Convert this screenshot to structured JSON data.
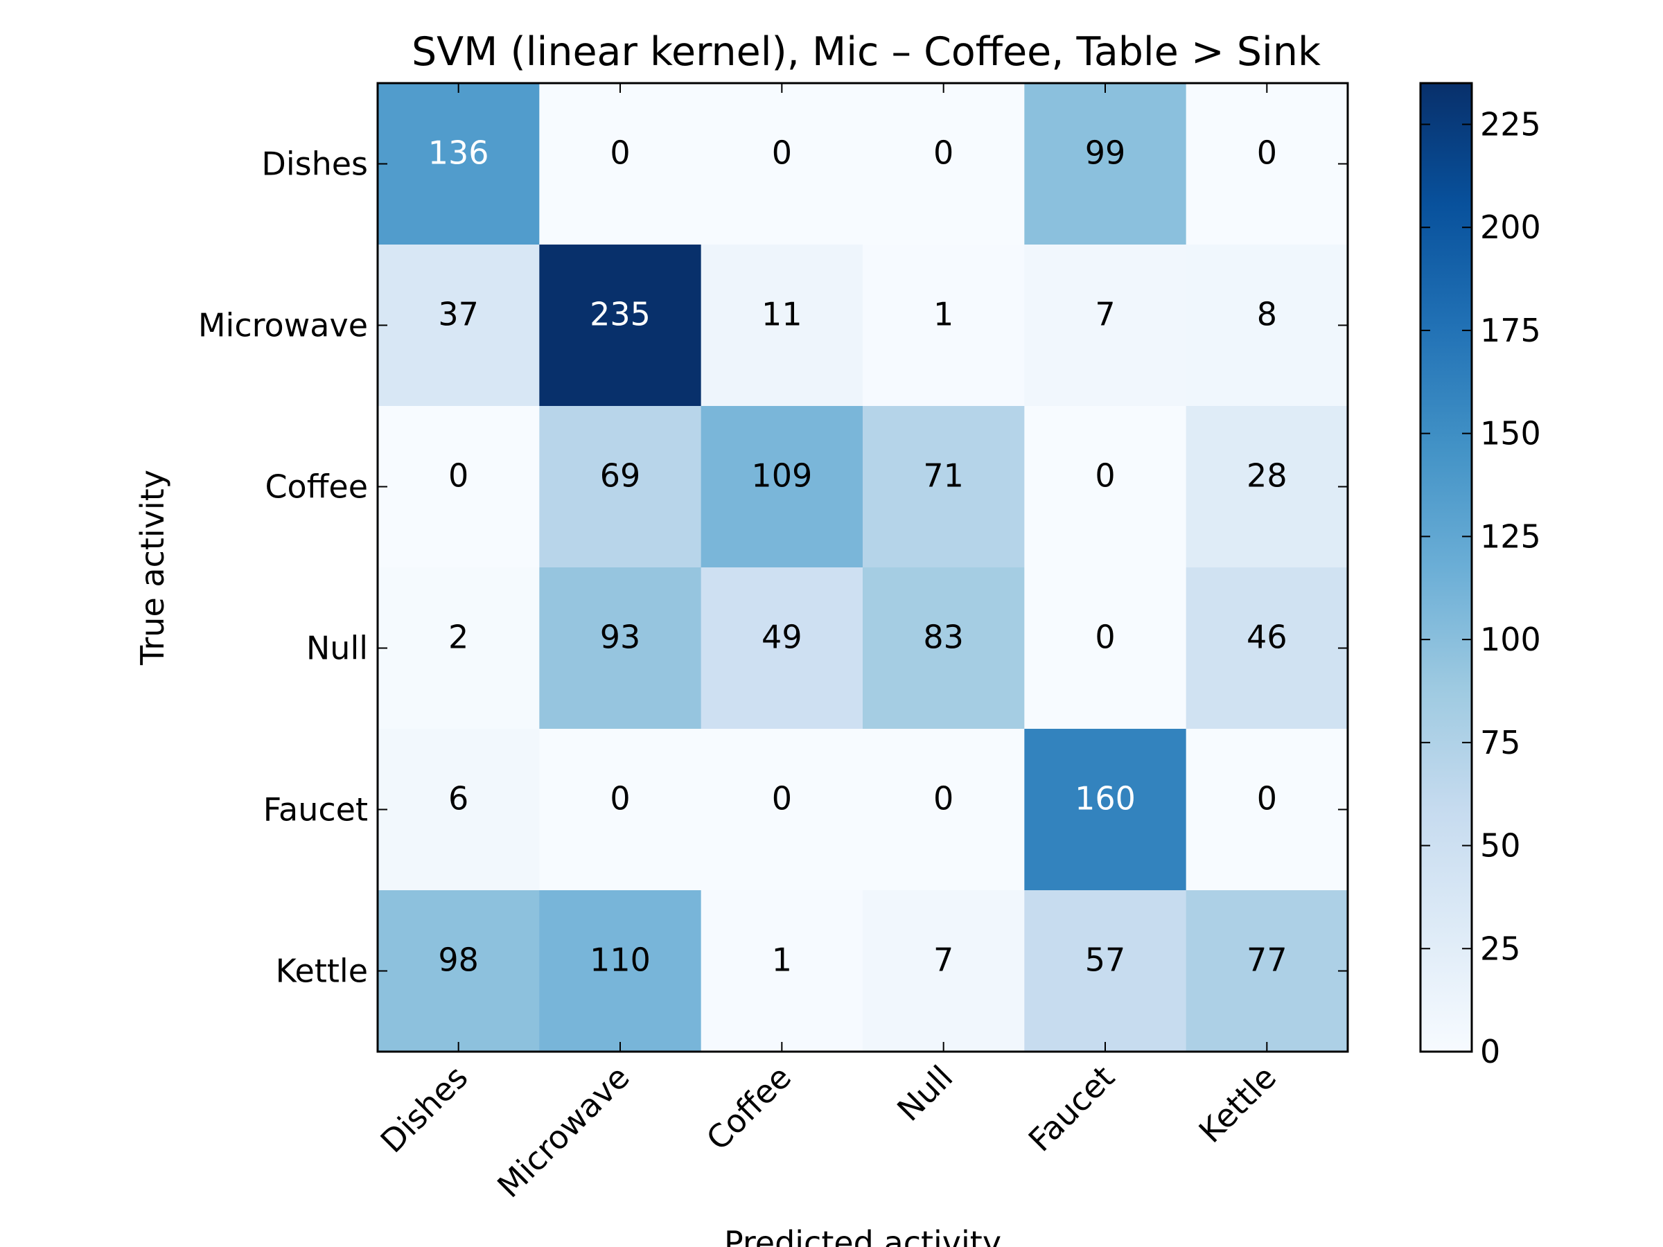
{
  "chart_data": {
    "type": "heatmap",
    "title": "SVM (linear kernel), Mic – Coffee, Table > Sink",
    "xlabel": "Predicted activity",
    "ylabel": "True activity",
    "x_categories": [
      "Dishes",
      "Microwave",
      "Coffee",
      "Null",
      "Faucet",
      "Kettle"
    ],
    "y_categories": [
      "Dishes",
      "Microwave",
      "Coffee",
      "Null",
      "Faucet",
      "Kettle"
    ],
    "values": [
      [
        136,
        0,
        0,
        0,
        99,
        0
      ],
      [
        37,
        235,
        11,
        1,
        7,
        8
      ],
      [
        0,
        69,
        109,
        71,
        0,
        28
      ],
      [
        2,
        93,
        49,
        83,
        0,
        46
      ],
      [
        6,
        0,
        0,
        0,
        160,
        0
      ],
      [
        98,
        110,
        1,
        7,
        57,
        77
      ]
    ],
    "colorbar": {
      "colormap": "Blues",
      "min": 0,
      "max": 235,
      "ticks": [
        0,
        25,
        50,
        75,
        100,
        125,
        150,
        175,
        200,
        225
      ]
    },
    "grid": false,
    "legend": "colorbar-right"
  }
}
